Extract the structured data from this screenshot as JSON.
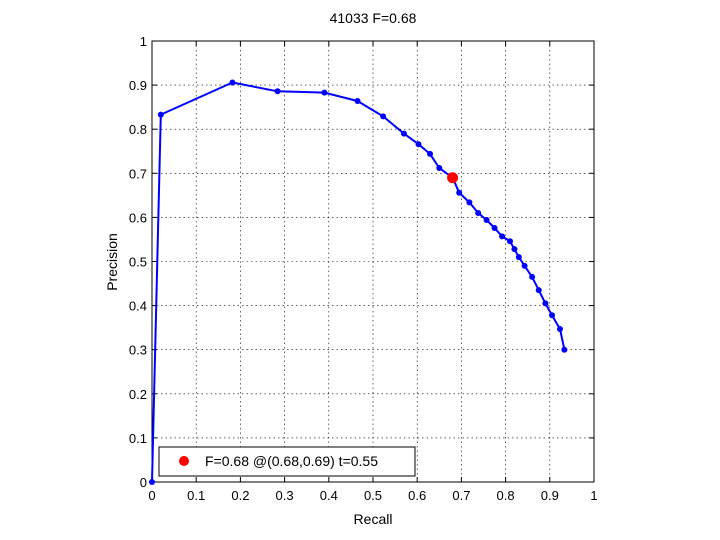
{
  "chart_data": {
    "type": "line",
    "title": "41033 F=0.68",
    "xlabel": "Recall",
    "ylabel": "Precision",
    "xlim": [
      0,
      1
    ],
    "ylim": [
      0,
      1
    ],
    "xticks": [
      "0",
      "0.1",
      "0.2",
      "0.3",
      "0.4",
      "0.5",
      "0.6",
      "0.7",
      "0.8",
      "0.9",
      "1"
    ],
    "yticks": [
      "0",
      "0.1",
      "0.2",
      "0.3",
      "0.4",
      "0.5",
      "0.6",
      "0.7",
      "0.8",
      "0.9",
      "1"
    ],
    "grid": true,
    "legend_position": "bottom-left",
    "series": [
      {
        "color": "#0000ff",
        "marker": "circle",
        "points": [
          [
            0.0,
            0.0
          ],
          [
            0.02,
            0.833
          ],
          [
            0.182,
            0.906
          ],
          [
            0.284,
            0.886
          ],
          [
            0.39,
            0.883
          ],
          [
            0.465,
            0.864
          ],
          [
            0.523,
            0.829
          ],
          [
            0.57,
            0.79
          ],
          [
            0.603,
            0.766
          ],
          [
            0.629,
            0.744
          ],
          [
            0.65,
            0.712
          ],
          [
            0.68,
            0.69
          ],
          [
            0.695,
            0.656
          ],
          [
            0.718,
            0.634
          ],
          [
            0.738,
            0.61
          ],
          [
            0.757,
            0.594
          ],
          [
            0.775,
            0.576
          ],
          [
            0.792,
            0.557
          ],
          [
            0.81,
            0.546
          ],
          [
            0.82,
            0.528
          ],
          [
            0.83,
            0.51
          ],
          [
            0.843,
            0.49
          ],
          [
            0.86,
            0.465
          ],
          [
            0.875,
            0.435
          ],
          [
            0.89,
            0.405
          ],
          [
            0.905,
            0.378
          ],
          [
            0.923,
            0.347
          ],
          [
            0.933,
            0.3
          ]
        ]
      }
    ],
    "highlight": {
      "color": "#ff0000",
      "point": [
        0.68,
        0.69
      ],
      "label": "F=0.68 @(0.68,0.69) t=0.55"
    }
  }
}
